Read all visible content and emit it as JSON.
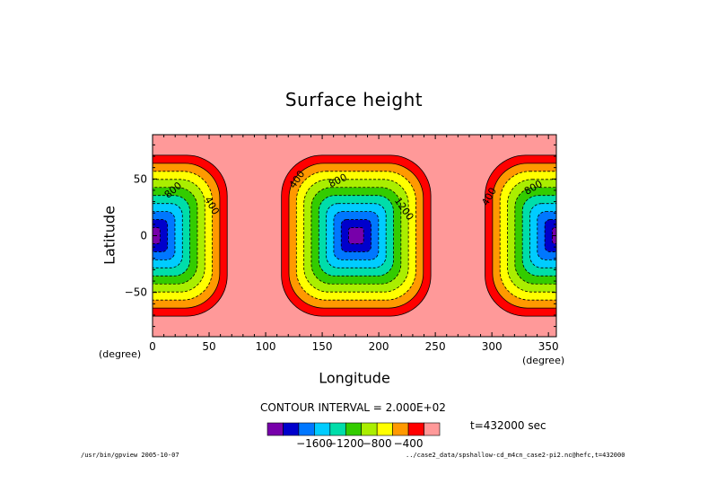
{
  "chart_data": {
    "type": "heatmap",
    "title": "Surface height",
    "xlabel": "Longitude",
    "ylabel": "Latitude",
    "x_units": "(degree)",
    "xlim": [
      0,
      357
    ],
    "ylim": [
      -89,
      89
    ],
    "x_ticks": [
      0,
      50,
      100,
      150,
      200,
      250,
      300,
      350
    ],
    "y_ticks": [
      -50,
      0,
      50
    ],
    "contour_interval_text": "CONTOUR INTERVAL = 2.000E+02",
    "time_text": "t=432000 sec",
    "field": {
      "description_type": "cosine bell depression",
      "centers_lon": [
        0,
        180,
        360
      ],
      "center_lat": 0,
      "peak_value": -1900,
      "radius_lon": 68,
      "radius_lat": 73
    },
    "contour_labels": [
      "800",
      "400",
      "400",
      "800",
      "1200",
      "400",
      "800"
    ],
    "colorbar": {
      "levels": [
        -1800,
        -1600,
        -1400,
        -1200,
        -1000,
        -800,
        -600,
        -400,
        -200,
        0
      ],
      "colors": [
        "#7700aa",
        "#0000cc",
        "#0077ff",
        "#00ccff",
        "#00ddaa",
        "#33cc00",
        "#aaee00",
        "#ffff00",
        "#ff9900",
        "#ff0000",
        "#ff9999"
      ],
      "tick_labels": [
        "−1600",
        "−1200",
        "−800",
        "−400"
      ]
    },
    "legend_position": "bottom"
  },
  "footer": {
    "left": "/usr/bin/gpview  2005-10-07",
    "right": "../case2_data/spshallow-cd_m4cn_case2-pi2.nc@hefc,t=432000"
  }
}
